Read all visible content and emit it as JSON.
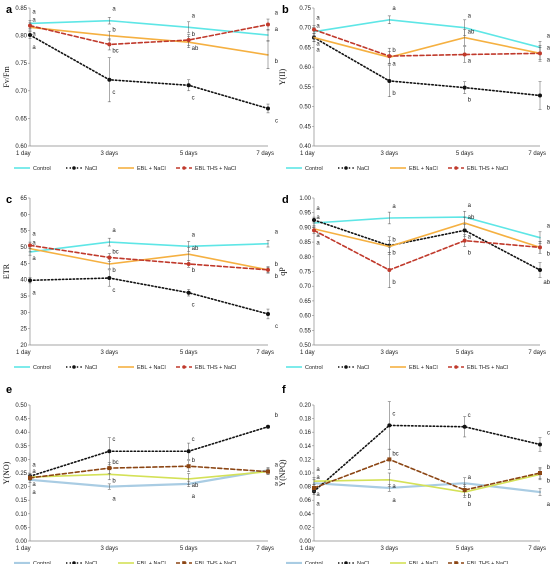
{
  "chart_data": [
    {
      "panel": "a",
      "type": "line",
      "ylabel": "Fv/Fm",
      "ylim": [
        0.6,
        0.85
      ],
      "yticks": [
        0.6,
        0.65,
        0.7,
        0.75,
        0.8,
        0.85
      ],
      "ydec": 2,
      "categories": [
        "1 day",
        "3 days",
        "5 days",
        "7 days"
      ],
      "series": [
        {
          "name": "Control",
          "values": [
            0.822,
            0.827,
            0.815,
            0.801
          ],
          "errors": [
            0.005,
            0.006,
            0.01,
            0.01
          ],
          "color": "#5ee6e6",
          "dash": "solid",
          "width": 1.6,
          "marker": "none"
        },
        {
          "name": "NaCl",
          "values": [
            0.801,
            0.72,
            0.71,
            0.668
          ],
          "errors": [
            0.006,
            0.04,
            0.01,
            0.008
          ],
          "color": "#111111",
          "dash": "dot",
          "width": 1.6,
          "marker": "circle"
        },
        {
          "name": "EBL + NaCl",
          "values": [
            0.815,
            0.8,
            0.788,
            0.765
          ],
          "errors": [
            0.005,
            0.008,
            0.01,
            0.025
          ],
          "color": "#f5b041",
          "dash": "solid",
          "width": 1.6,
          "marker": "none"
        },
        {
          "name": "EBL THS + NaCl",
          "values": [
            0.818,
            0.784,
            0.792,
            0.82
          ],
          "errors": [
            0.005,
            0.01,
            0.01,
            0.01
          ],
          "color": "#c0392b",
          "dash": "dash",
          "width": 1.6,
          "marker": "circle"
        }
      ],
      "letters": [
        [
          "a",
          "a",
          "a",
          "a"
        ],
        [
          "a",
          "c",
          "c",
          "c"
        ],
        [
          "a",
          "b",
          "ab",
          "b"
        ],
        [
          "a",
          "bc",
          "b",
          "a"
        ]
      ]
    },
    {
      "panel": "b",
      "type": "line",
      "ylabel": "Y(II)",
      "ylim": [
        0.4,
        0.75
      ],
      "yticks": [
        0.4,
        0.45,
        0.5,
        0.55,
        0.6,
        0.65,
        0.7,
        0.75
      ],
      "ydec": 2,
      "categories": [
        "1 day",
        "3 days",
        "5 days",
        "7 days"
      ],
      "series": [
        {
          "name": "Control",
          "values": [
            0.69,
            0.72,
            0.7,
            0.65
          ],
          "errors": [
            0.01,
            0.01,
            0.02,
            0.015
          ],
          "color": "#5ee6e6",
          "dash": "solid",
          "width": 1.6,
          "marker": "none"
        },
        {
          "name": "NaCl",
          "values": [
            0.675,
            0.565,
            0.548,
            0.528
          ],
          "errors": [
            0.01,
            0.04,
            0.015,
            0.035
          ],
          "color": "#111111",
          "dash": "dot",
          "width": 1.6,
          "marker": "circle"
        },
        {
          "name": "EBL + NaCl",
          "values": [
            0.675,
            0.625,
            0.675,
            0.635
          ],
          "errors": [
            0.01,
            0.015,
            0.02,
            0.02
          ],
          "color": "#f5b041",
          "dash": "solid",
          "width": 1.6,
          "marker": "none"
        },
        {
          "name": "EBL THS + NaCl",
          "values": [
            0.695,
            0.628,
            0.632,
            0.635
          ],
          "errors": [
            0.01,
            0.02,
            0.02,
            0.015
          ],
          "color": "#c0392b",
          "dash": "dash",
          "width": 1.6,
          "marker": "circle"
        }
      ],
      "letters": [
        [
          "a",
          "a",
          "a",
          "a"
        ],
        [
          "a",
          "b",
          "b",
          "b"
        ],
        [
          "a",
          "a",
          "ab",
          "a"
        ],
        [
          "a",
          "b",
          "a",
          "a"
        ]
      ]
    },
    {
      "panel": "c",
      "type": "line",
      "ylabel": "ETR",
      "ylim": [
        20,
        65
      ],
      "yticks": [
        20,
        25,
        30,
        35,
        40,
        45,
        50,
        55,
        60,
        65
      ],
      "ydec": 0,
      "categories": [
        "1 day",
        "3 days",
        "5 days",
        "7 days"
      ],
      "series": [
        {
          "name": "Control",
          "values": [
            48.5,
            51.5,
            50.2,
            51
          ],
          "errors": [
            1,
            1.2,
            1.5,
            1
          ],
          "color": "#5ee6e6",
          "dash": "solid",
          "width": 1.6,
          "marker": "none"
        },
        {
          "name": "NaCl",
          "values": [
            39.8,
            40.5,
            36,
            29.5
          ],
          "errors": [
            0.8,
            2.5,
            1,
            1.5
          ],
          "color": "#111111",
          "dash": "dot",
          "width": 1.6,
          "marker": "circle"
        },
        {
          "name": "EBL + NaCl",
          "values": [
            49.5,
            44.8,
            47.8,
            43
          ],
          "errors": [
            1,
            1.5,
            2,
            1
          ],
          "color": "#f5b041",
          "dash": "solid",
          "width": 1.6,
          "marker": "none"
        },
        {
          "name": "EBL THS + NaCl",
          "values": [
            50.5,
            46.8,
            44.8,
            43
          ],
          "errors": [
            1,
            1.2,
            1,
            0.8
          ],
          "color": "#c0392b",
          "dash": "dash",
          "width": 1.6,
          "marker": "circle"
        }
      ],
      "letters": [
        [
          "a",
          "a",
          "a",
          "a"
        ],
        [
          "a",
          "c",
          "c",
          "c"
        ],
        [
          "a",
          "b",
          "ab",
          "b"
        ],
        [
          "a",
          "bc",
          "b",
          "b"
        ]
      ]
    },
    {
      "panel": "d",
      "type": "line",
      "ylabel": "qP",
      "ylim": [
        0.5,
        1
      ],
      "yticks": [
        0.5,
        0.55,
        0.6,
        0.65,
        0.7,
        0.75,
        0.8,
        0.85,
        0.9,
        0.95,
        1
      ],
      "ydec": 2,
      "categories": [
        "1 day",
        "3 days",
        "5 days",
        "7 days"
      ],
      "series": [
        {
          "name": "Control",
          "values": [
            0.915,
            0.932,
            0.935,
            0.865
          ],
          "errors": [
            0.01,
            0.02,
            0.02,
            0.02
          ],
          "color": "#5ee6e6",
          "dash": "solid",
          "width": 1.6,
          "marker": "none"
        },
        {
          "name": "NaCl",
          "values": [
            0.925,
            0.838,
            0.89,
            0.755
          ],
          "errors": [
            0.01,
            0.03,
            0.02,
            0.025
          ],
          "color": "#111111",
          "dash": "dot",
          "width": 1.6,
          "marker": "circle"
        },
        {
          "name": "EBL + NaCl",
          "values": [
            0.895,
            0.835,
            0.915,
            0.832
          ],
          "errors": [
            0.01,
            0.02,
            0.02,
            0.02
          ],
          "color": "#f5b041",
          "dash": "solid",
          "width": 1.6,
          "marker": "none"
        },
        {
          "name": "EBL THS + NaCl",
          "values": [
            0.89,
            0.755,
            0.855,
            0.832
          ],
          "errors": [
            0.01,
            0.06,
            0.02,
            0.02
          ],
          "color": "#c0392b",
          "dash": "dash",
          "width": 1.6,
          "marker": "circle"
        }
      ],
      "letters": [
        [
          "a",
          "a",
          "a",
          "a"
        ],
        [
          "a",
          "b",
          "a",
          "ab"
        ],
        [
          "a",
          "b",
          "ab",
          "a"
        ],
        [
          "a",
          "b",
          "b",
          "b"
        ]
      ]
    },
    {
      "panel": "e",
      "type": "line",
      "ylabel": "Y(NO)",
      "ylim": [
        0,
        0.5
      ],
      "yticks": [
        0,
        0.05,
        0.1,
        0.15,
        0.2,
        0.25,
        0.3,
        0.35,
        0.4,
        0.45,
        0.5
      ],
      "ydec": 2,
      "categories": [
        "1 day",
        "3 days",
        "5 days",
        "7 days"
      ],
      "series": [
        {
          "name": "Control",
          "values": [
            0.225,
            0.2,
            0.21,
            0.26
          ],
          "errors": [
            0.01,
            0.01,
            0.01,
            0.01
          ],
          "color": "#a9cce3",
          "dash": "solid",
          "width": 2.2,
          "marker": "none"
        },
        {
          "name": "NaCl",
          "values": [
            0.238,
            0.33,
            0.33,
            0.42
          ],
          "errors": [
            0.01,
            0.05,
            0.03,
            0.005
          ],
          "color": "#111111",
          "dash": "dot",
          "width": 1.6,
          "marker": "circle"
        },
        {
          "name": "EBL + NaCl",
          "values": [
            0.235,
            0.245,
            0.228,
            0.255
          ],
          "errors": [
            0.01,
            0.02,
            0.02,
            0.01
          ],
          "color": "#d4e157",
          "dash": "solid",
          "width": 1.6,
          "marker": "none"
        },
        {
          "name": "EBL THS + NaCl",
          "values": [
            0.232,
            0.268,
            0.275,
            0.255
          ],
          "errors": [
            0.01,
            0.02,
            0.02,
            0.01
          ],
          "color": "#8b4513",
          "dash": "dash",
          "width": 1.6,
          "marker": "square"
        }
      ],
      "letters": [
        [
          "a",
          "a",
          "a",
          "a"
        ],
        [
          "a",
          "c",
          "c",
          "b"
        ],
        [
          "a",
          "b",
          "ab",
          "a"
        ],
        [
          "a",
          "bc",
          "b",
          "a"
        ]
      ]
    },
    {
      "panel": "f",
      "type": "line",
      "ylabel": "Y(NPQ)",
      "ylim": [
        0,
        0.2
      ],
      "yticks": [
        0,
        0.02,
        0.04,
        0.06,
        0.08,
        0.1,
        0.12,
        0.14,
        0.16,
        0.18,
        0.2
      ],
      "ydec": 2,
      "categories": [
        "1 day",
        "3 days",
        "5 days",
        "7 days"
      ],
      "series": [
        {
          "name": "Control",
          "values": [
            0.085,
            0.078,
            0.085,
            0.072
          ],
          "errors": [
            0.005,
            0.005,
            0.008,
            0.005
          ],
          "color": "#a9cce3",
          "dash": "solid",
          "width": 2.2,
          "marker": "none"
        },
        {
          "name": "NaCl",
          "values": [
            0.073,
            0.17,
            0.168,
            0.142
          ],
          "errors": [
            0.005,
            0.035,
            0.015,
            0.01
          ],
          "color": "#111111",
          "dash": "dot",
          "width": 1.6,
          "marker": "circle"
        },
        {
          "name": "EBL + NaCl",
          "values": [
            0.088,
            0.09,
            0.072,
            0.098
          ],
          "errors": [
            0.005,
            0.01,
            0.008,
            0.008
          ],
          "color": "#d4e157",
          "dash": "solid",
          "width": 1.6,
          "marker": "none"
        },
        {
          "name": "EBL THS + NaCl",
          "values": [
            0.078,
            0.12,
            0.075,
            0.1
          ],
          "errors": [
            0.005,
            0.015,
            0.008,
            0.008
          ],
          "color": "#8b4513",
          "dash": "dash",
          "width": 1.6,
          "marker": "square"
        }
      ],
      "letters": [
        [
          "a",
          "a",
          "a",
          "a"
        ],
        [
          "a",
          "c",
          "c",
          "c"
        ],
        [
          "a",
          "a",
          "b",
          "b"
        ],
        [
          "a",
          "bc",
          "b",
          "b"
        ]
      ]
    }
  ]
}
